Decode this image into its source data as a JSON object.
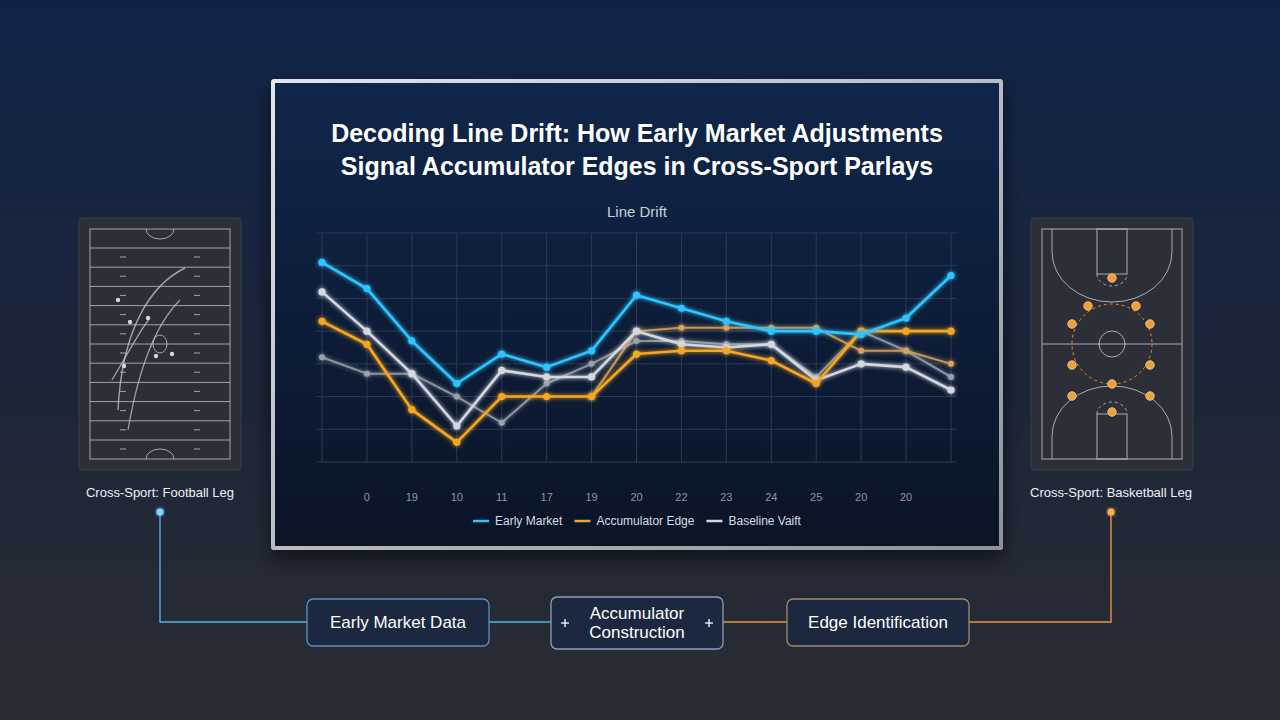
{
  "chart_data": {
    "type": "line",
    "title": "Decoding Line Drift: How Early Market Adjustments Signal Accumulator Edges in Cross-Sport Parlays",
    "subtitle": "Line Drift",
    "categories": [
      null,
      "0",
      "19",
      "10",
      "11",
      "17",
      "19",
      "20",
      "22",
      "23",
      "24",
      "25",
      "20",
      "20",
      null
    ],
    "series": [
      {
        "name": "Early Market",
        "color": "#2ec4ff",
        "values": [
          7.1,
          6.3,
          4.7,
          3.4,
          4.3,
          3.9,
          4.4,
          6.1,
          5.7,
          5.3,
          5.0,
          5.0,
          4.9,
          5.4,
          6.7
        ]
      },
      {
        "name": "Accumulator Edge",
        "color": "#f5a623",
        "values": [
          5.3,
          4.6,
          2.6,
          1.6,
          3.0,
          3.0,
          3.0,
          4.3,
          4.4,
          4.4,
          4.1,
          3.4,
          5.0,
          5.0,
          5.0
        ]
      },
      {
        "name": "Baseline Vaift",
        "color": "#d4d8df",
        "values": [
          6.2,
          5.0,
          3.7,
          2.1,
          3.8,
          3.6,
          3.6,
          5.0,
          4.6,
          4.5,
          4.6,
          3.5,
          4.0,
          3.9,
          3.2
        ]
      },
      {
        "color": "#d9a35a",
        "values": [
          null,
          null,
          null,
          null,
          null,
          null,
          3.0,
          5.0,
          5.1,
          5.1,
          5.1,
          5.1,
          4.4,
          4.4,
          4.0
        ]
      },
      {
        "color": "#9aa3ad",
        "values": [
          4.2,
          3.7,
          3.7,
          3.0,
          2.2,
          3.4,
          4.0,
          4.7,
          4.7,
          4.6,
          4.6,
          3.6,
          5.0,
          4.4,
          3.6
        ]
      }
    ],
    "ylim": [
      1,
      8
    ],
    "yticks": [
      1,
      2,
      3,
      4,
      5,
      6,
      7,
      8
    ],
    "grid": true,
    "tick_labels": "x",
    "legend": "bottom",
    "marker": "circle"
  },
  "panels": [
    {
      "label": "Cross-Sport: Football Leg"
    },
    {
      "label": "Cross-Sport: Basketball Leg"
    }
  ],
  "flow": {
    "steps": [
      "Early Market Data",
      "Accumulator Construction",
      "Edge Identification"
    ]
  }
}
